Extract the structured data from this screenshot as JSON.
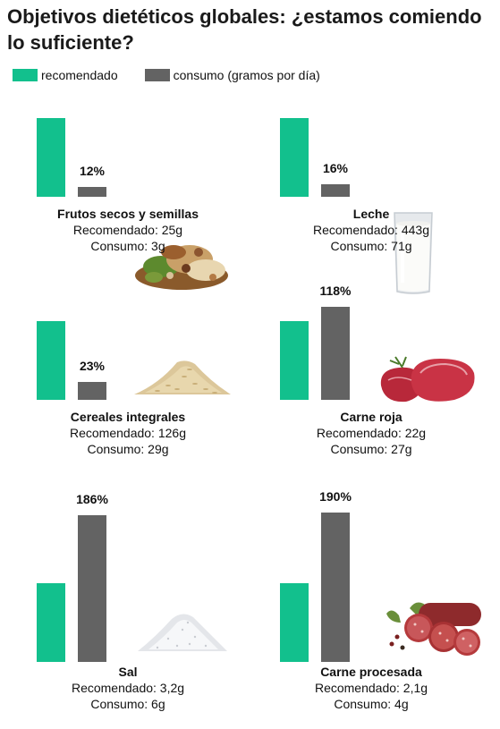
{
  "title": "Objetivos dietéticos globales: ¿estamos comiendo lo suficiente?",
  "legend": [
    {
      "label": "recomendado",
      "color": "#12c08d"
    },
    {
      "label": "consumo (gramos por día)",
      "color": "#636363"
    }
  ],
  "colors": {
    "recommended": "#12c08d",
    "consumption": "#636363"
  },
  "chart_data": {
    "type": "bar",
    "title": "Objetivos dietéticos globales: ¿estamos comiendo lo suficiente?",
    "series": [
      {
        "name": "recomendado",
        "values": [
          100,
          100,
          100,
          100,
          100,
          100
        ]
      },
      {
        "name": "consumo (gramos por día)",
        "values": [
          12,
          16,
          23,
          118,
          186,
          190
        ]
      }
    ],
    "categories": [
      "Frutos secos y semillas",
      "Leche",
      "Cereales integrales",
      "Carne roja",
      "Sal",
      "Carne procesada"
    ],
    "panels": [
      {
        "name": "Frutos secos y semillas",
        "recommended_text": "Recomendado: 25g",
        "consumption_text": "Consumo: 3g",
        "pct_label": "12%",
        "pct": 12,
        "icon": "nuts-icon"
      },
      {
        "name": "Leche",
        "recommended_text": "Recomendado: 443g",
        "consumption_text": "Consumo: 71g",
        "pct_label": "16%",
        "pct": 16,
        "icon": "milk-glass-icon"
      },
      {
        "name": "Cereales integrales",
        "recommended_text": "Recomendado: 126g",
        "consumption_text": "Consumo: 29g",
        "pct_label": "23%",
        "pct": 23,
        "icon": "grain-pile-icon"
      },
      {
        "name": "Carne roja",
        "recommended_text": "Recomendado: 22g",
        "consumption_text": "Consumo: 27g",
        "pct_label": "118%",
        "pct": 118,
        "icon": "red-meat-icon"
      },
      {
        "name": "Sal",
        "recommended_text": "Recomendado: 3,2g",
        "consumption_text": "Consumo: 6g",
        "pct_label": "186%",
        "pct": 186,
        "icon": "salt-pile-icon"
      },
      {
        "name": "Carne procesada",
        "recommended_text": "Recomendado: 2,1g",
        "consumption_text": "Consumo: 4g",
        "pct_label": "190%",
        "pct": 190,
        "icon": "sausage-icon"
      }
    ]
  }
}
